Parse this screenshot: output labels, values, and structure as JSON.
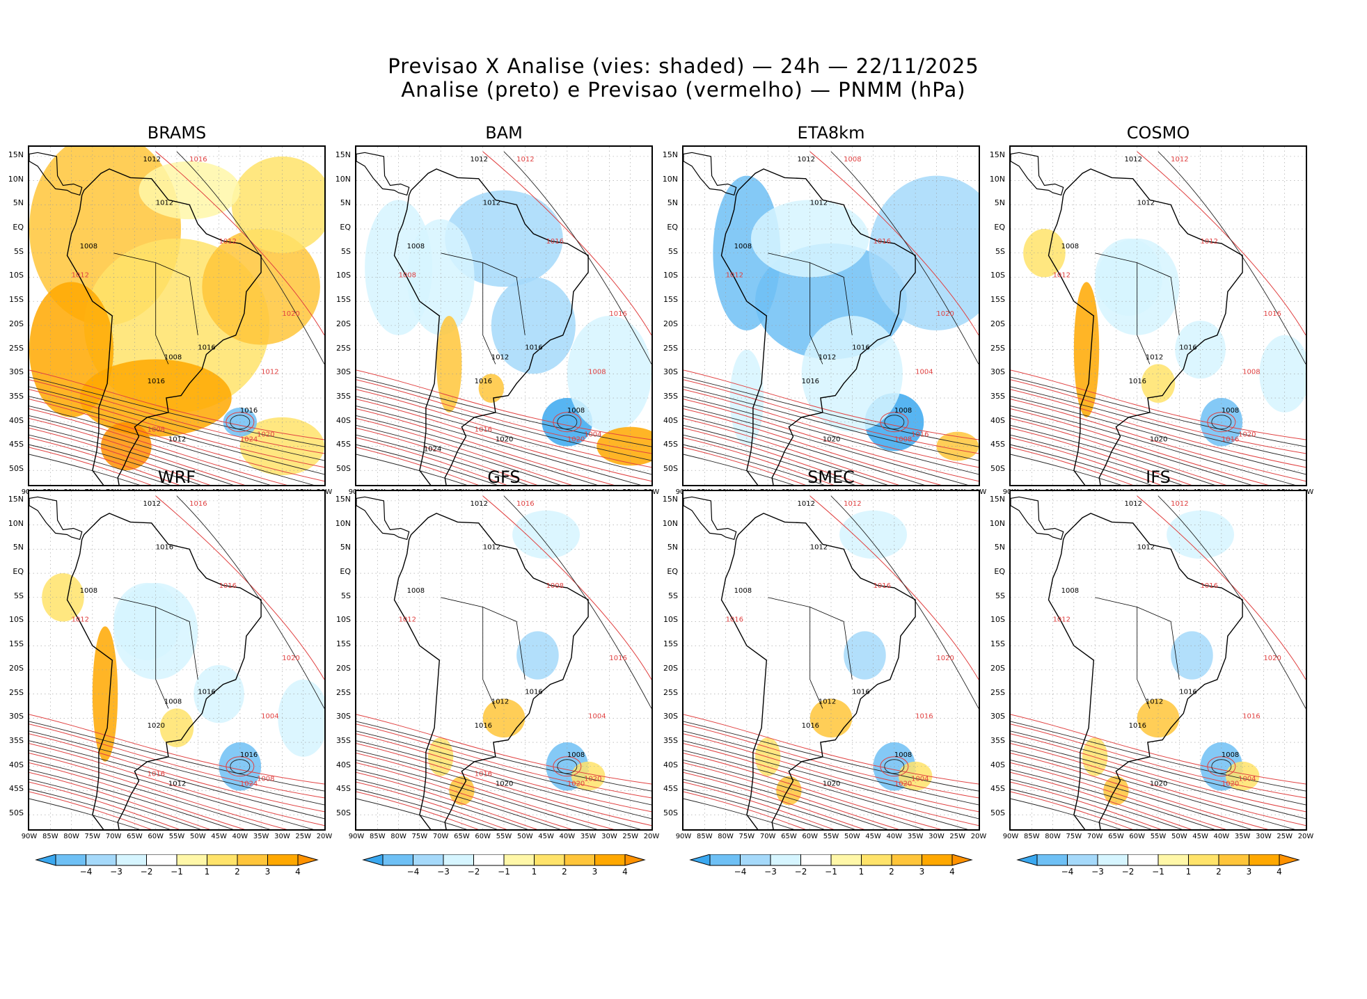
{
  "title": {
    "line1": "Previsao X Analise (vies: shaded) — 24h — 22/11/2025",
    "line2": "Analise (preto) e Previsao (vermelho) — PNMM (hPa)"
  },
  "lat_labels": [
    "15N",
    "10N",
    "5N",
    "EQ",
    "5S",
    "10S",
    "15S",
    "20S",
    "25S",
    "30S",
    "35S",
    "40S",
    "45S",
    "50S"
  ],
  "lon_labels": [
    "90W",
    "85W",
    "80W",
    "75W",
    "70W",
    "65W",
    "60W",
    "55W",
    "50W",
    "45W",
    "40W",
    "35W",
    "30W",
    "25W",
    "20W"
  ],
  "colorbar": {
    "labels": [
      "−4",
      "−3",
      "−2",
      "−1",
      "1",
      "2",
      "3",
      "4"
    ],
    "colors": [
      "#3aa8f0",
      "#6ec0f5",
      "#a5d9fa",
      "#d6f5ff",
      "#ffffff",
      "#fff7a8",
      "#ffe36a",
      "#ffc53a",
      "#ffa800",
      "#ff9200"
    ]
  },
  "panels": [
    {
      "name": "BRAMS",
      "bias": "warm-strong",
      "labels": {
        "black": [
          "1012",
          "1008",
          "1012",
          "1016",
          "1016",
          "1012",
          "1008",
          "1016"
        ],
        "red": [
          "1016",
          "1012",
          "1012",
          "1020",
          "1024",
          "1020",
          "1012",
          "1008"
        ]
      }
    },
    {
      "name": "BAM",
      "bias": "cold",
      "labels": {
        "black": [
          "1012",
          "1008",
          "1012",
          "1016",
          "1016",
          "1020",
          "1012",
          "1008",
          "1024"
        ],
        "red": [
          "1012",
          "1008",
          "1016",
          "1016",
          "1020",
          "1004",
          "1008",
          "1016"
        ]
      }
    },
    {
      "name": "ETA8km",
      "bias": "cold-strong",
      "labels": {
        "black": [
          "1012",
          "1008",
          "1012",
          "1016",
          "1016",
          "1020",
          "1012",
          "1008"
        ],
        "red": [
          "1008",
          "1012",
          "1016",
          "1020",
          "1008",
          "1016",
          "1004"
        ]
      }
    },
    {
      "name": "COSMO",
      "bias": "mixed",
      "labels": {
        "black": [
          "1012",
          "1008",
          "1012",
          "1016",
          "1016",
          "1020",
          "1012",
          "1008"
        ],
        "red": [
          "1012",
          "1012",
          "1012",
          "1016",
          "1016",
          "1020",
          "1008"
        ]
      }
    },
    {
      "name": "WRF",
      "bias": "mixed",
      "labels": {
        "black": [
          "1012",
          "1008",
          "1016",
          "1016",
          "1020",
          "1012",
          "1008",
          "1016"
        ],
        "red": [
          "1016",
          "1012",
          "1016",
          "1020",
          "1024",
          "1008",
          "1004",
          "1016"
        ]
      }
    },
    {
      "name": "GFS",
      "bias": "light",
      "labels": {
        "black": [
          "1012",
          "1008",
          "1012",
          "1016",
          "1016",
          "1020",
          "1012",
          "1008"
        ],
        "red": [
          "1016",
          "1012",
          "1008",
          "1016",
          "1020",
          "1020",
          "1004",
          "1016"
        ]
      }
    },
    {
      "name": "SMEC",
      "bias": "light",
      "labels": {
        "black": [
          "1012",
          "1008",
          "1012",
          "1016",
          "1016",
          "1020",
          "1012",
          "1008"
        ],
        "red": [
          "1012",
          "1016",
          "1016",
          "1020",
          "1020",
          "1004",
          "1016"
        ]
      }
    },
    {
      "name": "IFS",
      "bias": "light",
      "labels": {
        "black": [
          "1012",
          "1008",
          "1012",
          "1016",
          "1016",
          "1020",
          "1012",
          "1008"
        ],
        "red": [
          "1012",
          "1012",
          "1016",
          "1020",
          "1020",
          "1004",
          "1016"
        ]
      }
    }
  ]
}
